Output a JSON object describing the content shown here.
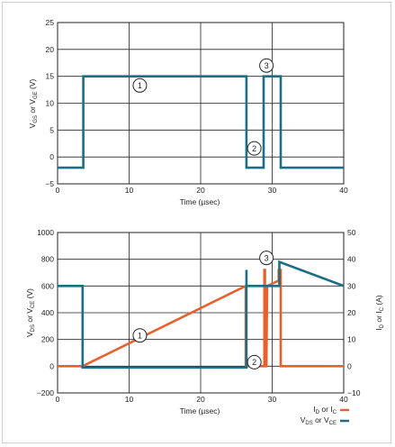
{
  "chart_data": [
    {
      "type": "line",
      "title": "",
      "xlabel": "Time (µsec)",
      "ylabel": "VGS or VGE (V)",
      "xlim": [
        0,
        40
      ],
      "ylim": [
        -5,
        25
      ],
      "xticks": [
        "0",
        "10",
        "20",
        "30",
        "40"
      ],
      "yticks": [
        "−5",
        "0",
        "5",
        "10",
        "15",
        "20",
        "25"
      ],
      "grid": true,
      "series": [
        {
          "color": "#1b6e86",
          "x": [
            0,
            3.6,
            3.6,
            26.4,
            26.4,
            28.8,
            28.8,
            31.2,
            31.2,
            40
          ],
          "y": [
            -2,
            -2,
            15,
            15,
            -2,
            -2,
            15,
            15,
            -2,
            -2
          ]
        }
      ],
      "annotations": [
        {
          "label": "1",
          "x": 11.5,
          "y": 13.3
        },
        {
          "label": "2",
          "x": 27.5,
          "y": 1.6
        },
        {
          "label": "3",
          "x": 29.2,
          "y": 17.0
        }
      ]
    },
    {
      "type": "line",
      "title": "",
      "xlabel": "Time (µsec)",
      "ylabel": "VDS or VCE (V)",
      "ylabel_right": "ID or IC (A)",
      "xlim": [
        0,
        40
      ],
      "ylim": [
        -200,
        1000
      ],
      "ylim_right": [
        -10,
        50
      ],
      "xticks": [
        "0",
        "10",
        "20",
        "30",
        "40"
      ],
      "yticks": [
        "−200",
        "0",
        "200",
        "400",
        "600",
        "800",
        "1000"
      ],
      "yticks_right": [
        "−10",
        "0",
        "10",
        "20",
        "30",
        "40",
        "50"
      ],
      "grid": true,
      "legend_position": "bottom-right",
      "series": [
        {
          "name": "ID or IC",
          "axis": "right",
          "color": "#e8602c",
          "x": [
            0,
            3.5,
            26.3,
            26.3,
            26.6,
            26.6,
            28.9,
            28.9,
            29.0,
            29.0,
            29.2,
            29.3,
            30.9,
            30.9,
            31.2,
            31.2,
            40
          ],
          "y": [
            0,
            0,
            30,
            0,
            0,
            0,
            0,
            36,
            36,
            0,
            0,
            30,
            32,
            36,
            36,
            0,
            0
          ]
        },
        {
          "name": "VDS or VCE",
          "axis": "left",
          "color": "#1b6e86",
          "x": [
            0,
            3.5,
            3.5,
            26.4,
            26.4,
            26.4,
            29.0,
            29.0,
            31.0,
            31.0,
            40
          ],
          "y": [
            600,
            600,
            -10,
            -10,
            720,
            600,
            600,
            600,
            600,
            780,
            600
          ]
        }
      ],
      "annotations": [
        {
          "label": "1",
          "x": 11.5,
          "y": 230
        },
        {
          "label": "2",
          "x": 27.5,
          "y": 30
        },
        {
          "label": "3",
          "x": 29.2,
          "y": 810
        }
      ]
    }
  ],
  "legend": {
    "items": [
      {
        "label": "ID or IC",
        "color": "#e8602c"
      },
      {
        "label": "VDS or VCE",
        "color": "#1b6e86"
      }
    ]
  }
}
